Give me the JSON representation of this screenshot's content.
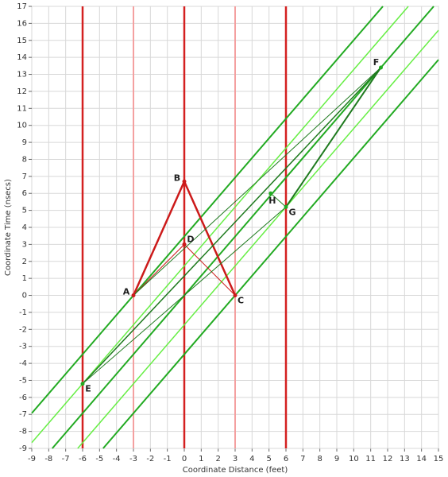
{
  "chart_data": {
    "type": "line",
    "x_label": "Coordinate Distance (feet)",
    "y_label": "Coordinate Time (nsecs)",
    "xlim": [
      -9,
      15
    ],
    "ylim": [
      -9,
      17
    ],
    "xticks": [
      -9,
      -8,
      -7,
      -6,
      -5,
      -4,
      -3,
      -2,
      -1,
      0,
      1,
      2,
      3,
      4,
      5,
      6,
      7,
      8,
      9,
      10,
      11,
      12,
      13,
      14,
      15
    ],
    "yticks": [
      -9,
      -8,
      -7,
      -6,
      -5,
      -4,
      -3,
      -2,
      -1,
      0,
      1,
      2,
      3,
      4,
      5,
      6,
      7,
      8,
      9,
      10,
      11,
      12,
      13,
      14,
      15,
      16,
      17
    ],
    "grid": true,
    "segments": [
      {
        "x": [
          -6,
          -6
        ],
        "y": [
          -9,
          17
        ],
        "color": "#d42020",
        "width": 2.5
      },
      {
        "x": [
          0,
          0
        ],
        "y": [
          -9,
          17
        ],
        "color": "#d42020",
        "width": 2.5
      },
      {
        "x": [
          6,
          6
        ],
        "y": [
          -9,
          17
        ],
        "color": "#d42020",
        "width": 2.5
      },
      {
        "x": [
          -3,
          -3
        ],
        "y": [
          -9,
          17
        ],
        "color": "#f4a0a0",
        "width": 2
      },
      {
        "x": [
          3,
          3
        ],
        "y": [
          -9,
          17
        ],
        "color": "#f4a0a0",
        "width": 2
      },
      {
        "x": [
          -9,
          11.72
        ],
        "y": [
          -6.93,
          17
        ],
        "color": "#22aa22",
        "width": 2
      },
      {
        "x": [
          -9,
          13.22
        ],
        "y": [
          -8.66,
          17
        ],
        "color": "#66ee44",
        "width": 1.5
      },
      {
        "x": [
          -7.79,
          14.72
        ],
        "y": [
          -9,
          17
        ],
        "color": "#22aa22",
        "width": 2
      },
      {
        "x": [
          -6.29,
          15
        ],
        "y": [
          -9,
          15.59
        ],
        "color": "#66ee44",
        "width": 1.5
      },
      {
        "x": [
          -4.79,
          15
        ],
        "y": [
          -9,
          13.86
        ],
        "color": "#22aa22",
        "width": 2
      },
      {
        "x": [
          -3,
          0
        ],
        "y": [
          0,
          6.7
        ],
        "color": "#cc1a1a",
        "width": 2.5
      },
      {
        "x": [
          0,
          3
        ],
        "y": [
          6.7,
          0
        ],
        "color": "#cc1a1a",
        "width": 2.5
      },
      {
        "x": [
          -3,
          0
        ],
        "y": [
          0,
          3
        ],
        "color": "#cc1a1a",
        "width": 1
      },
      {
        "x": [
          0,
          3
        ],
        "y": [
          3,
          0
        ],
        "color": "#cc1a1a",
        "width": 1
      },
      {
        "x": [
          -3,
          11.6
        ],
        "y": [
          0,
          13.4
        ],
        "color": "#1e7a1e",
        "width": 1
      },
      {
        "x": [
          -6,
          11.6
        ],
        "y": [
          -5.2,
          13.4
        ],
        "color": "#1e7a1e",
        "width": 1.5
      },
      {
        "x": [
          -6,
          6
        ],
        "y": [
          -5.2,
          5.2
        ],
        "color": "#1e7a1e",
        "width": 1
      },
      {
        "x": [
          6,
          11.6
        ],
        "y": [
          5.2,
          13.4
        ],
        "color": "#1e7a1e",
        "width": 2
      },
      {
        "x": [
          5.1,
          6
        ],
        "y": [
          6,
          5.2
        ],
        "color": "#1e7a1e",
        "width": 1
      }
    ],
    "points": [
      {
        "name": "A",
        "x": -3,
        "y": 0,
        "color": "#cc1a1a"
      },
      {
        "name": "B",
        "x": 0,
        "y": 6.7,
        "color": "#cc1a1a"
      },
      {
        "name": "C",
        "x": 3,
        "y": 0,
        "color": "#cc1a1a"
      },
      {
        "name": "D",
        "x": 0,
        "y": 3,
        "color": "#cc1a1a"
      },
      {
        "name": "E",
        "x": -6,
        "y": -5.2,
        "color": "#22aa22"
      },
      {
        "name": "F",
        "x": 11.6,
        "y": 13.4,
        "color": "#22aa22"
      },
      {
        "name": "G",
        "x": 6,
        "y": 5.2,
        "color": "#22aa22"
      },
      {
        "name": "H",
        "x": 5.1,
        "y": 6,
        "color": "#22aa22"
      }
    ]
  }
}
